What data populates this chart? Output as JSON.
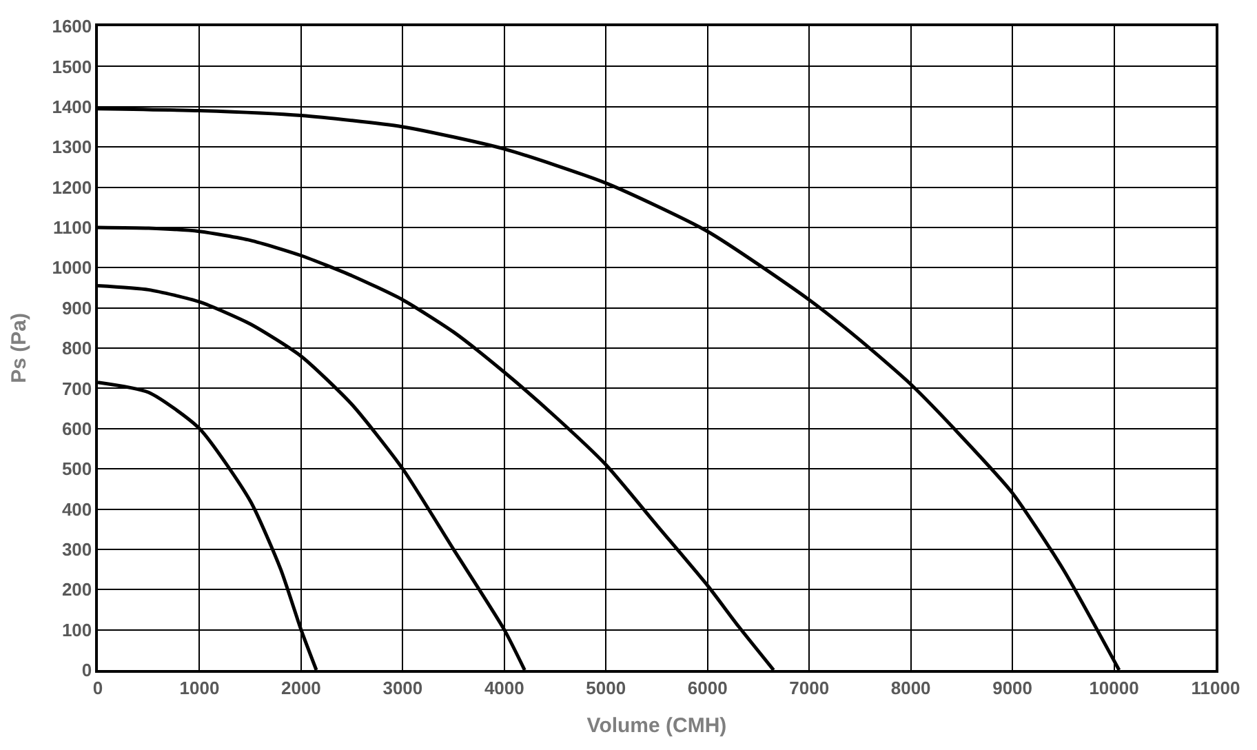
{
  "chart_data": {
    "type": "line",
    "xlabel": "Volume (CMH)",
    "ylabel": "Ps (Pa)",
    "xlim": [
      0,
      11000
    ],
    "xticks": [
      0,
      1000,
      2000,
      3000,
      4000,
      5000,
      6000,
      7000,
      8000,
      9000,
      10000,
      11000
    ],
    "ylim": [
      0,
      1600
    ],
    "yticks": [
      0,
      100,
      200,
      300,
      400,
      500,
      600,
      700,
      800,
      900,
      1000,
      1100,
      1200,
      1300,
      1400,
      1500,
      1600
    ],
    "grid": true,
    "marker": "none",
    "line_style": "solid",
    "series": [
      {
        "color": "#000000",
        "x": [
          0,
          500,
          1000,
          1500,
          1800,
          2000,
          2150
        ],
        "values": [
          715,
          690,
          600,
          420,
          250,
          100,
          0
        ]
      },
      {
        "color": "#000000",
        "x": [
          0,
          500,
          1000,
          1500,
          2000,
          2500,
          3000,
          3500,
          4000,
          4200
        ],
        "values": [
          955,
          945,
          915,
          860,
          780,
          660,
          500,
          300,
          100,
          0
        ]
      },
      {
        "color": "#000000",
        "x": [
          0,
          500,
          1000,
          1500,
          2000,
          2500,
          3000,
          3500,
          4000,
          4500,
          5000,
          5500,
          6000,
          6300,
          6650
        ],
        "values": [
          1100,
          1098,
          1090,
          1068,
          1030,
          980,
          920,
          840,
          740,
          630,
          510,
          360,
          210,
          110,
          0
        ]
      },
      {
        "color": "#000000",
        "x": [
          0,
          1000,
          2000,
          3000,
          4000,
          5000,
          6000,
          7000,
          7500,
          8000,
          8500,
          9000,
          9500,
          10050
        ],
        "values": [
          1395,
          1390,
          1378,
          1350,
          1295,
          1210,
          1090,
          920,
          820,
          710,
          580,
          440,
          250,
          0
        ]
      }
    ]
  }
}
